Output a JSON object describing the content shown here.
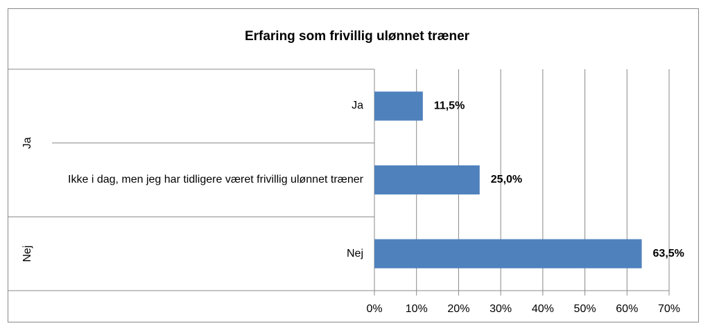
{
  "chart_data": {
    "type": "bar",
    "orientation": "horizontal",
    "title": "Erfaring som frivillig ulønnet træner",
    "categories": [
      "Ja",
      "Ikke i dag, men jeg har tidligere været frivillig ulønnet træner",
      "Nej"
    ],
    "groups": [
      {
        "name": "Ja",
        "span": 2
      },
      {
        "name": "Nej",
        "span": 1
      }
    ],
    "values": [
      11.5,
      25.0,
      63.5
    ],
    "value_labels": [
      "11,5%",
      "25,0%",
      "63,5%"
    ],
    "color": "#4f81bd",
    "xlim": [
      0,
      70
    ],
    "xticks": [
      {
        "value": 0,
        "label": "0%"
      },
      {
        "value": 10,
        "label": "10%"
      },
      {
        "value": 20,
        "label": "20%"
      },
      {
        "value": 30,
        "label": "30%"
      },
      {
        "value": 40,
        "label": "40%"
      },
      {
        "value": 50,
        "label": "50%"
      },
      {
        "value": 60,
        "label": "60%"
      },
      {
        "value": 70,
        "label": "70%"
      }
    ],
    "grid": true
  }
}
